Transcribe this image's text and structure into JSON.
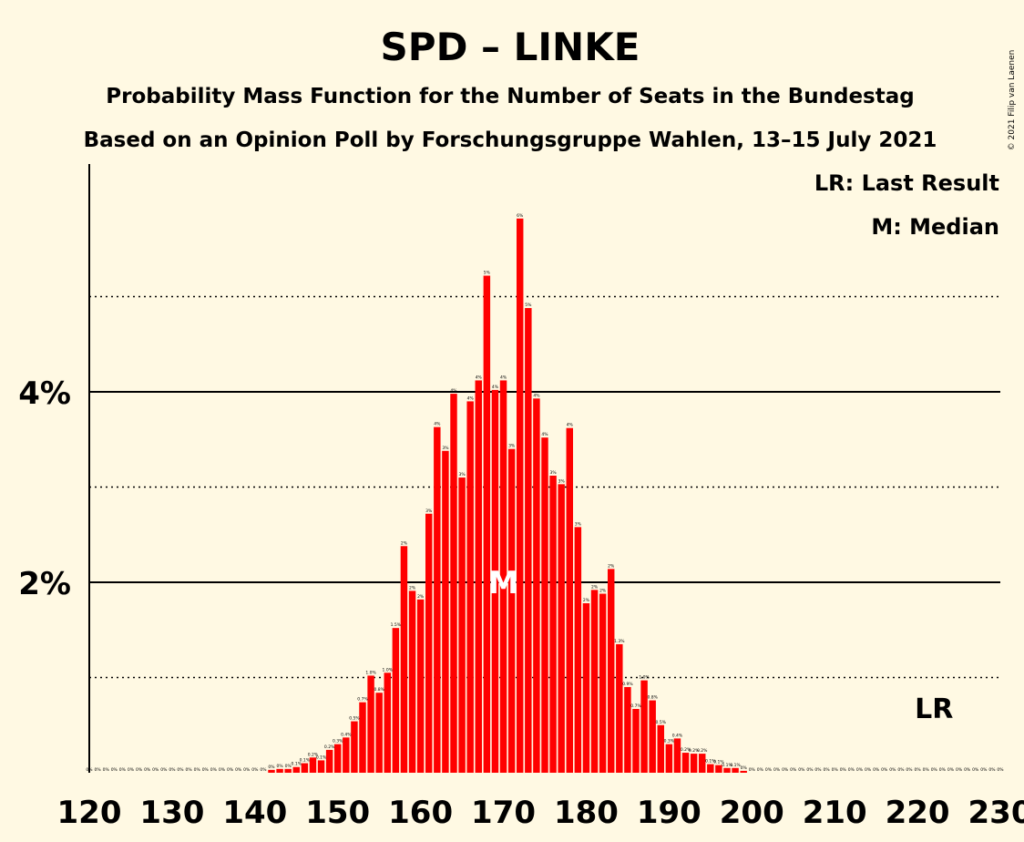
{
  "chart_data": {
    "type": "bar",
    "title": "SPD – LINKE",
    "subtitle": "Probability Mass Function for the Number of Seats in the Bundestag",
    "subtitle2": "Based on an Opinion Poll by Forschungsgruppe Wahlen, 13–15 July 2021",
    "copyright": "© 2021 Filip van Laenen",
    "legend": [
      "LR: Last Result",
      "M: Median"
    ],
    "xlabel": "",
    "ylabel": "",
    "xlim": [
      120,
      230
    ],
    "ylim": [
      0,
      6.3
    ],
    "x_ticks": [
      120,
      130,
      140,
      150,
      160,
      170,
      180,
      190,
      200,
      210,
      220,
      230
    ],
    "y_ticks": [
      {
        "value": 2,
        "label": "2%"
      },
      {
        "value": 4,
        "label": "4%"
      }
    ],
    "dotted_gridlines": [
      1,
      3,
      5
    ],
    "median": 170,
    "last_result": 222,
    "median_label": "M",
    "last_result_label": "LR",
    "bar_color": "#FF0000",
    "x": [
      120,
      121,
      122,
      123,
      124,
      125,
      126,
      127,
      128,
      129,
      130,
      131,
      132,
      133,
      134,
      135,
      136,
      137,
      138,
      139,
      140,
      141,
      142,
      143,
      144,
      145,
      146,
      147,
      148,
      149,
      150,
      151,
      152,
      153,
      154,
      155,
      156,
      157,
      158,
      159,
      160,
      161,
      162,
      163,
      164,
      165,
      166,
      167,
      168,
      169,
      170,
      171,
      172,
      173,
      174,
      175,
      176,
      177,
      178,
      179,
      180,
      181,
      182,
      183,
      184,
      185,
      186,
      187,
      188,
      189,
      190,
      191,
      192,
      193,
      194,
      195,
      196,
      197,
      198,
      199,
      200,
      201,
      202,
      203,
      204,
      205,
      206,
      207,
      208,
      209,
      210,
      211,
      212,
      213,
      214,
      215,
      216,
      217,
      218,
      219,
      220,
      221,
      222,
      223,
      224,
      225,
      226,
      227,
      228,
      229,
      230
    ],
    "values": [
      0,
      0,
      0,
      0,
      0,
      0,
      0,
      0,
      0,
      0,
      0,
      0,
      0,
      0,
      0,
      0,
      0,
      0,
      0,
      0,
      0,
      0,
      0.03,
      0.04,
      0.04,
      0.06,
      0.1,
      0.16,
      0.13,
      0.24,
      0.3,
      0.37,
      0.54,
      0.74,
      1.02,
      0.84,
      1.05,
      1.52,
      2.38,
      1.91,
      1.82,
      2.72,
      3.63,
      3.38,
      3.98,
      3.1,
      3.9,
      4.12,
      5.22,
      4.02,
      4.12,
      3.4,
      5.82,
      4.88,
      3.93,
      3.52,
      3.12,
      3.03,
      3.62,
      2.58,
      1.78,
      1.92,
      1.88,
      2.14,
      1.35,
      0.9,
      0.67,
      0.97,
      0.76,
      0.5,
      0.3,
      0.36,
      0.21,
      0.2,
      0.2,
      0.09,
      0.08,
      0.05,
      0.05,
      0.02,
      0,
      0,
      0,
      0,
      0,
      0,
      0,
      0,
      0,
      0,
      0,
      0,
      0,
      0,
      0,
      0,
      0,
      0,
      0,
      0,
      0,
      0,
      0,
      0,
      0,
      0,
      0,
      0,
      0,
      0,
      0
    ],
    "data_labels": [
      "0%",
      "0%",
      "0%",
      "0%",
      "0%",
      "0%",
      "0%",
      "0%",
      "0%",
      "0%",
      "0%",
      "0%",
      "0%",
      "0%",
      "0%",
      "0%",
      "0%",
      "0%",
      "0%",
      "0%",
      "0%",
      "0%",
      "0%",
      "0%",
      "0%",
      "0.1%",
      "0.1%",
      "0.2%",
      "0.1%",
      "0.2%",
      "0.3%",
      "0.4%",
      "0.5%",
      "0.7%",
      "1.0%",
      "0.8%",
      "1.0%",
      "1.5%",
      "2%",
      "2%",
      "2%",
      "3%",
      "4%",
      "3%",
      "4%",
      "3%",
      "4%",
      "4%",
      "5%",
      "4%",
      "4%",
      "3%",
      "6%",
      "5%",
      "4%",
      "4%",
      "3%",
      "3%",
      "4%",
      "3%",
      "2%",
      "2%",
      "2%",
      "2%",
      "1.3%",
      "0.9%",
      "0.7%",
      "1.0%",
      "0.8%",
      "0.5%",
      "0.3%",
      "0.4%",
      "0.2%",
      "0.2%",
      "0.2%",
      "0.1%",
      "0.1%",
      "0.1%",
      "0.1%",
      "0%",
      "0%",
      "0%",
      "0%",
      "0%",
      "0%",
      "0%",
      "0%",
      "0%",
      "0%",
      "0%",
      "0%",
      "0%",
      "0%",
      "0%",
      "0%",
      "0%",
      "0%",
      "0%",
      "0%",
      "0%",
      "0%",
      "0%",
      "0%",
      "0%",
      "0%",
      "0%",
      "0%",
      "0%",
      "0%",
      "0%",
      "0%"
    ]
  }
}
